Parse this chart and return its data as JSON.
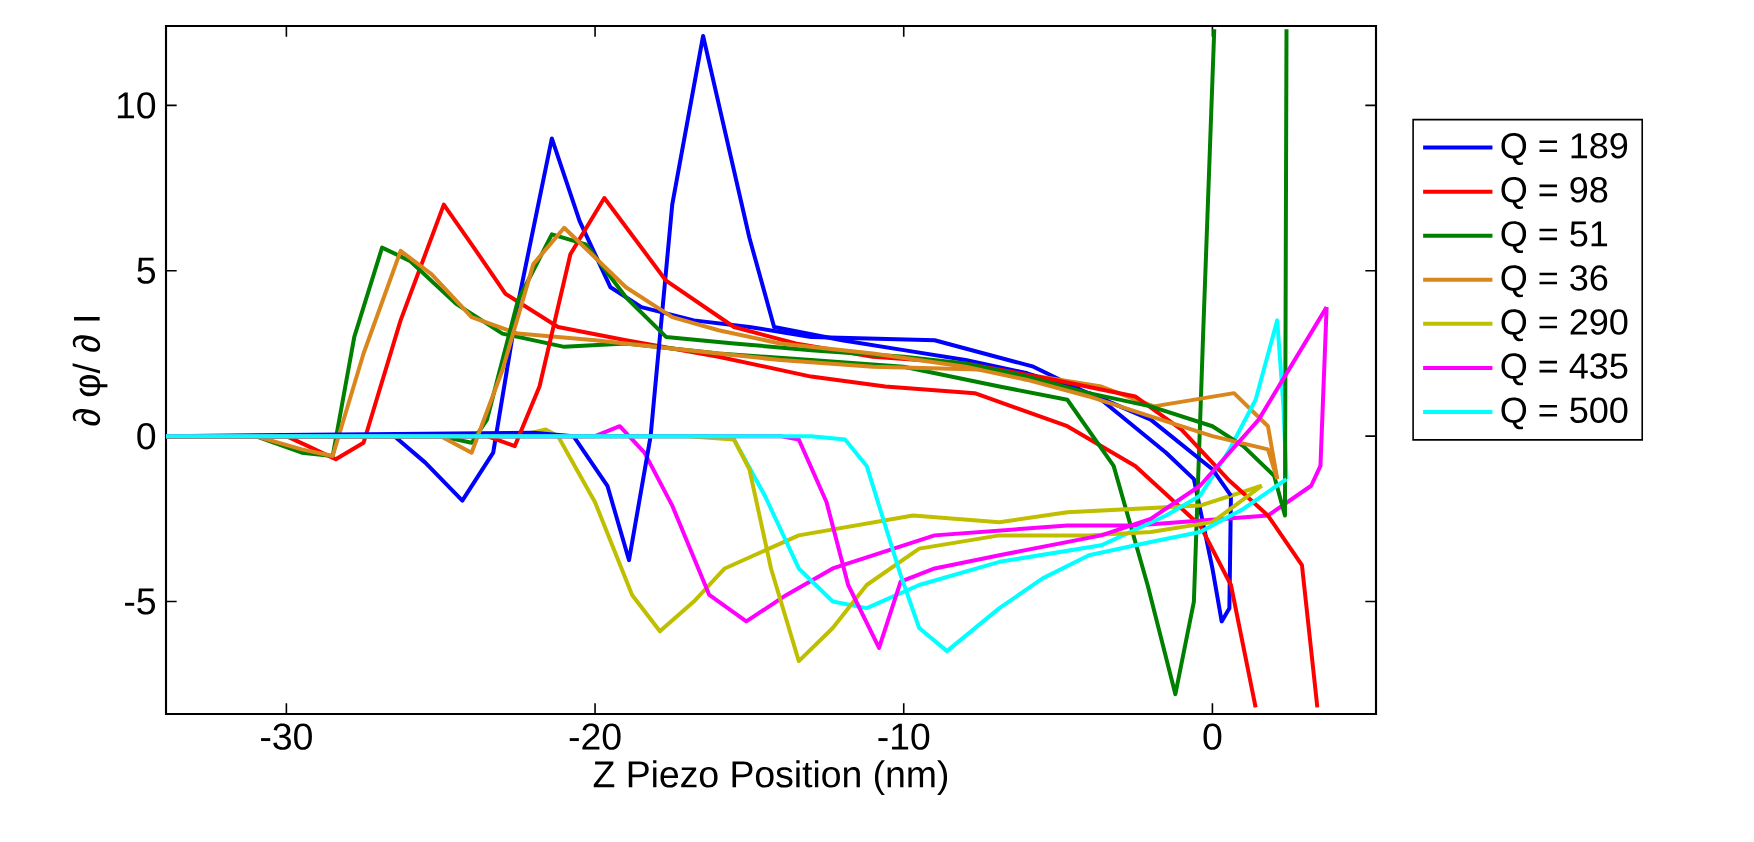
{
  "chart_data": {
    "type": "line",
    "xlabel": "Z Piezo Position (nm)",
    "ylabel": "∂ φ/ ∂ I",
    "xlim": [
      -33.9,
      5.3
    ],
    "ylim": [
      -8.4,
      12.4
    ],
    "xticks": [
      -30,
      -20,
      -10,
      0
    ],
    "yticks": [
      -5,
      0,
      5,
      10
    ],
    "legend": "right",
    "line_style": "solid",
    "series": [
      {
        "name": "Q = 189",
        "color": "#0000ff",
        "x": [
          -33.9,
          -26.5,
          -25.5,
          -24.3,
          -23.3,
          -22.5,
          -21.4,
          -20.5,
          -19.5,
          -18.5,
          -16.8,
          -15,
          -13,
          -9,
          -5.8,
          -3.6,
          -1.5,
          -0.6,
          0,
          0.3,
          0.55,
          0.6
        ],
        "values": [
          0,
          0,
          -0.8,
          -1.95,
          -0.5,
          4,
          9.0,
          6.5,
          4.5,
          3.9,
          3.5,
          3.3,
          3.0,
          2.9,
          2.1,
          1.1,
          -0.5,
          -1.3,
          -4,
          -5.6,
          -5.2,
          -1.8
        ]
      },
      {
        "name": "Q = 98",
        "color": "#ff0000",
        "x": [
          -33.9,
          -30,
          -29.3,
          -28.4,
          -27.5,
          -26.3,
          -24.9,
          -24,
          -22.9,
          -21.2,
          -19,
          -16,
          -13,
          -10.6,
          -7.7,
          -4.7,
          -2.5,
          -0.4,
          0.6,
          1.4
        ],
        "values": [
          0,
          0,
          -0.3,
          -0.7,
          -0.2,
          3.5,
          7.0,
          5.8,
          4.3,
          3.3,
          2.9,
          2.4,
          1.8,
          1.5,
          1.3,
          0.3,
          -0.9,
          -2.7,
          -4.5,
          -8.2
        ]
      },
      {
        "name": "Q = 51",
        "color": "#008000",
        "x": [
          -33.9,
          -31,
          -29.5,
          -28.5,
          -27.8,
          -26.9,
          -26,
          -24.5,
          -23,
          -21,
          -19,
          -16,
          -13,
          -10,
          -6.9,
          -4.7,
          -3.2,
          -2.1,
          -1.2,
          -0.6,
          -0.3,
          0.06
        ],
        "values": [
          0,
          0,
          -0.5,
          -0.6,
          3,
          5.7,
          5.3,
          4,
          3.1,
          2.7,
          2.8,
          2.5,
          2.3,
          2.1,
          1.5,
          1.1,
          -0.9,
          -4.5,
          -7.8,
          -5,
          3.1,
          12.3
        ]
      },
      {
        "name": "Q = 36",
        "color": "#d9861c",
        "x": [
          -33.9,
          -31,
          -29.5,
          -28.5,
          -27.5,
          -26.3,
          -25.3,
          -24,
          -22.5,
          -20,
          -17,
          -14,
          -11,
          -6.9,
          -3.6,
          -1.9,
          0.7,
          1.8,
          2.1
        ],
        "values": [
          0,
          0,
          -0.4,
          -0.6,
          2.5,
          5.6,
          4.9,
          3.6,
          3.1,
          2.9,
          2.6,
          2.3,
          2.1,
          2.0,
          1.5,
          0.9,
          1.3,
          0.3,
          -1.3
        ]
      },
      {
        "name": "Q = 290",
        "color": "#bfbf00",
        "x": [
          -33.9,
          -22.5,
          -21.6,
          -21.2,
          -20,
          -18.8,
          -17.9,
          -16.8,
          -15.8,
          -13.4,
          -9.7,
          -6.9,
          -4.7,
          -0.4,
          1.6
        ],
        "values": [
          0,
          0,
          0.2,
          0,
          -2,
          -4.8,
          -5.9,
          -5,
          -4.0,
          -3.0,
          -2.4,
          -2.6,
          -2.3,
          -2.1,
          -1.5
        ]
      },
      {
        "name": "Q = 435",
        "color": "#ff00ff",
        "x": [
          -33.9,
          -20,
          -19.2,
          -18.4,
          -17.5,
          -16.3,
          -15.1,
          -13.8,
          -12.3,
          -9,
          -4.7,
          -2.5,
          1.8,
          3.2,
          3.5,
          3.7
        ],
        "values": [
          0,
          0,
          0.3,
          -0.5,
          -2.1,
          -4.8,
          -5.6,
          -4.8,
          -4.0,
          -3.0,
          -2.7,
          -2.7,
          -2.4,
          -1.5,
          -0.9,
          3.9
        ]
      },
      {
        "name": "Q = 500",
        "color": "#00ffff",
        "x": [
          -33.9,
          -16,
          -15.5,
          -14.5,
          -13.4,
          -12.3,
          -11.2,
          -9.5,
          -6.9,
          -3.6,
          -1.5,
          -0.4,
          0.5,
          1.4,
          2.1,
          2.3,
          2.4
        ],
        "values": [
          0,
          0,
          -0.1,
          -1.8,
          -4,
          -5,
          -5.2,
          -4.5,
          -3.8,
          -3.3,
          -2.4,
          -1.8,
          -0.5,
          1.1,
          3.5,
          0.9,
          -1.3
        ]
      },
      {
        "color": "#0000ff",
        "x": [
          -33.9,
          -22,
          -20.7,
          -19.6,
          -18.9,
          -18.2,
          -17.5,
          -16.5,
          -15,
          -14.2,
          -12,
          -10,
          -8,
          -6,
          -4,
          -2,
          0,
          0.6
        ],
        "values": [
          0,
          0.1,
          0,
          -1.5,
          -3.75,
          0,
          7,
          12.1,
          6,
          3.3,
          2.9,
          2.6,
          2.3,
          1.9,
          1.3,
          0.5,
          -1,
          -1.8
        ]
      },
      {
        "color": "#ff0000",
        "x": [
          -33.9,
          -23.5,
          -22.6,
          -21.8,
          -20.8,
          -19.7,
          -17.7,
          -15.5,
          -13.5,
          -11,
          -8,
          -5.1,
          -2.5,
          -1,
          0.5,
          1.8,
          2.9,
          3.4
        ],
        "values": [
          0,
          0,
          -0.3,
          1.5,
          5.5,
          7.2,
          4.7,
          3.3,
          2.8,
          2.4,
          2.2,
          1.7,
          1.2,
          0.2,
          -1.3,
          -2.4,
          -3.9,
          -8.2
        ]
      },
      {
        "color": "#008000",
        "x": [
          -33.9,
          -25,
          -24,
          -23.5,
          -22.5,
          -21.4,
          -20.3,
          -19,
          -17.7,
          -15.5,
          -13,
          -10,
          -8,
          -6,
          -4,
          -2,
          0,
          1,
          2,
          2.35,
          2.4
        ],
        "values": [
          0,
          0,
          -0.2,
          0.5,
          4.1,
          6.1,
          5.8,
          4.2,
          3.0,
          2.8,
          2.6,
          2.4,
          2.2,
          1.8,
          1.3,
          0.9,
          0.3,
          -0.3,
          -1.2,
          -2.4,
          12.3
        ]
      },
      {
        "color": "#d9861c",
        "x": [
          -33.9,
          -25,
          -24,
          -23,
          -22,
          -21,
          -19,
          -17.5,
          -16,
          -14,
          -11,
          -8,
          -6,
          -4,
          -2,
          0,
          1.8,
          2.1
        ],
        "values": [
          0,
          0,
          -0.5,
          2,
          5.2,
          6.3,
          4.5,
          3.6,
          3.2,
          2.8,
          2.5,
          2.1,
          1.7,
          1.2,
          0.6,
          0,
          -0.4,
          -1.3
        ]
      },
      {
        "color": "#bfbf00",
        "x": [
          -33.9,
          -17,
          -15.5,
          -15,
          -14.3,
          -13.4,
          -12.3,
          -11.2,
          -9.5,
          -6.9,
          -4,
          -2,
          0,
          1.6
        ],
        "values": [
          0,
          0,
          -0.1,
          -1,
          -4,
          -6.8,
          -5.8,
          -4.5,
          -3.4,
          -3.0,
          -3.0,
          -2.9,
          -2.6,
          -1.5
        ]
      },
      {
        "color": "#ff00ff",
        "x": [
          -33.9,
          -14,
          -13.4,
          -12.5,
          -11.8,
          -10.8,
          -10.1,
          -9,
          -6.9,
          -3.6,
          -2,
          -0.4,
          1.5,
          3.7
        ],
        "values": [
          0,
          0,
          -0.1,
          -2,
          -4.5,
          -6.4,
          -4.4,
          -4.0,
          -3.6,
          -3.0,
          -2.5,
          -1.5,
          0.5,
          3.9
        ]
      },
      {
        "color": "#00ffff",
        "x": [
          -33.9,
          -13,
          -11.9,
          -11.2,
          -10.1,
          -9.5,
          -8.6,
          -6.9,
          -5.5,
          -4,
          -2,
          -0.4,
          1,
          2.4
        ],
        "values": [
          0,
          0,
          -0.1,
          -0.9,
          -4.2,
          -5.8,
          -6.5,
          -5.2,
          -4.3,
          -3.6,
          -3.2,
          -2.9,
          -2.2,
          -1.3
        ]
      }
    ]
  }
}
